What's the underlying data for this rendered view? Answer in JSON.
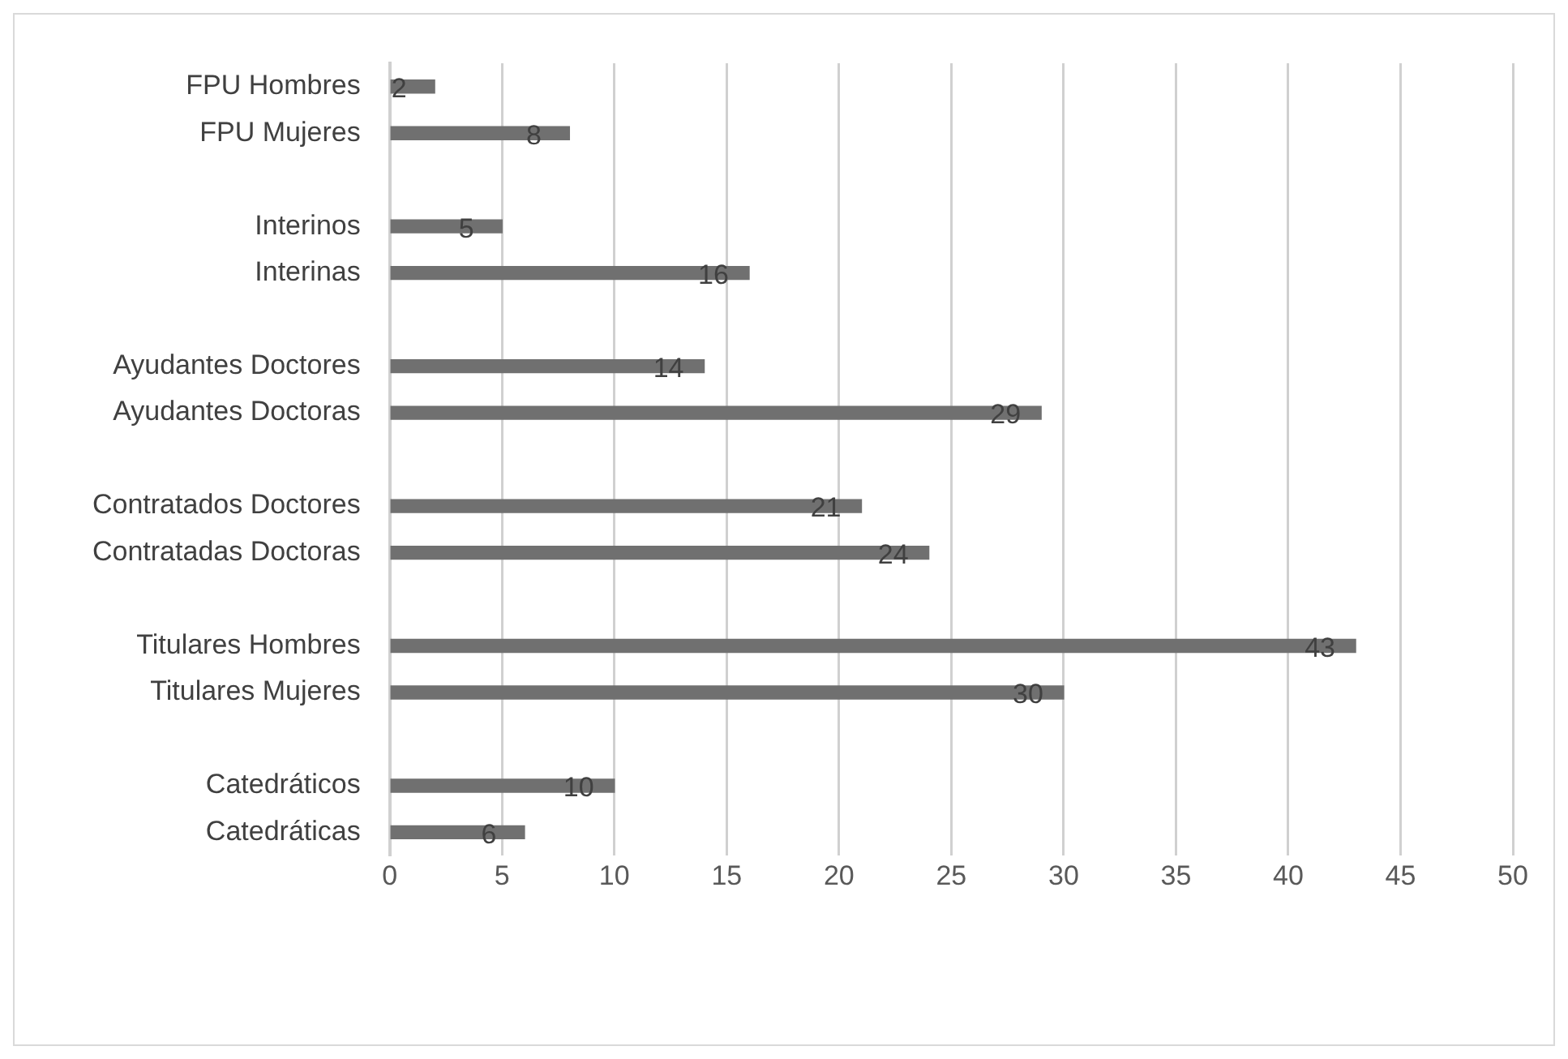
{
  "chart_data": {
    "type": "bar",
    "orientation": "horizontal",
    "categories": [
      "FPU Hombres",
      "FPU Mujeres",
      null,
      "Interinos",
      "Interinas",
      null,
      "Ayudantes Doctores",
      "Ayudantes Doctoras",
      null,
      "Contratados Doctores",
      "Contratadas Doctoras",
      null,
      "Titulares Hombres",
      "Titulares Mujeres",
      null,
      "Catedráticos",
      "Catedráticas"
    ],
    "values": [
      2,
      8,
      null,
      5,
      16,
      null,
      14,
      29,
      null,
      21,
      24,
      null,
      43,
      30,
      null,
      10,
      6
    ],
    "color": "#707070",
    "xlim": [
      0,
      50
    ],
    "xticks": [
      0,
      5,
      10,
      15,
      20,
      25,
      30,
      35,
      40,
      45,
      50
    ],
    "grid": "x",
    "legend": false,
    "data_labels": true
  }
}
